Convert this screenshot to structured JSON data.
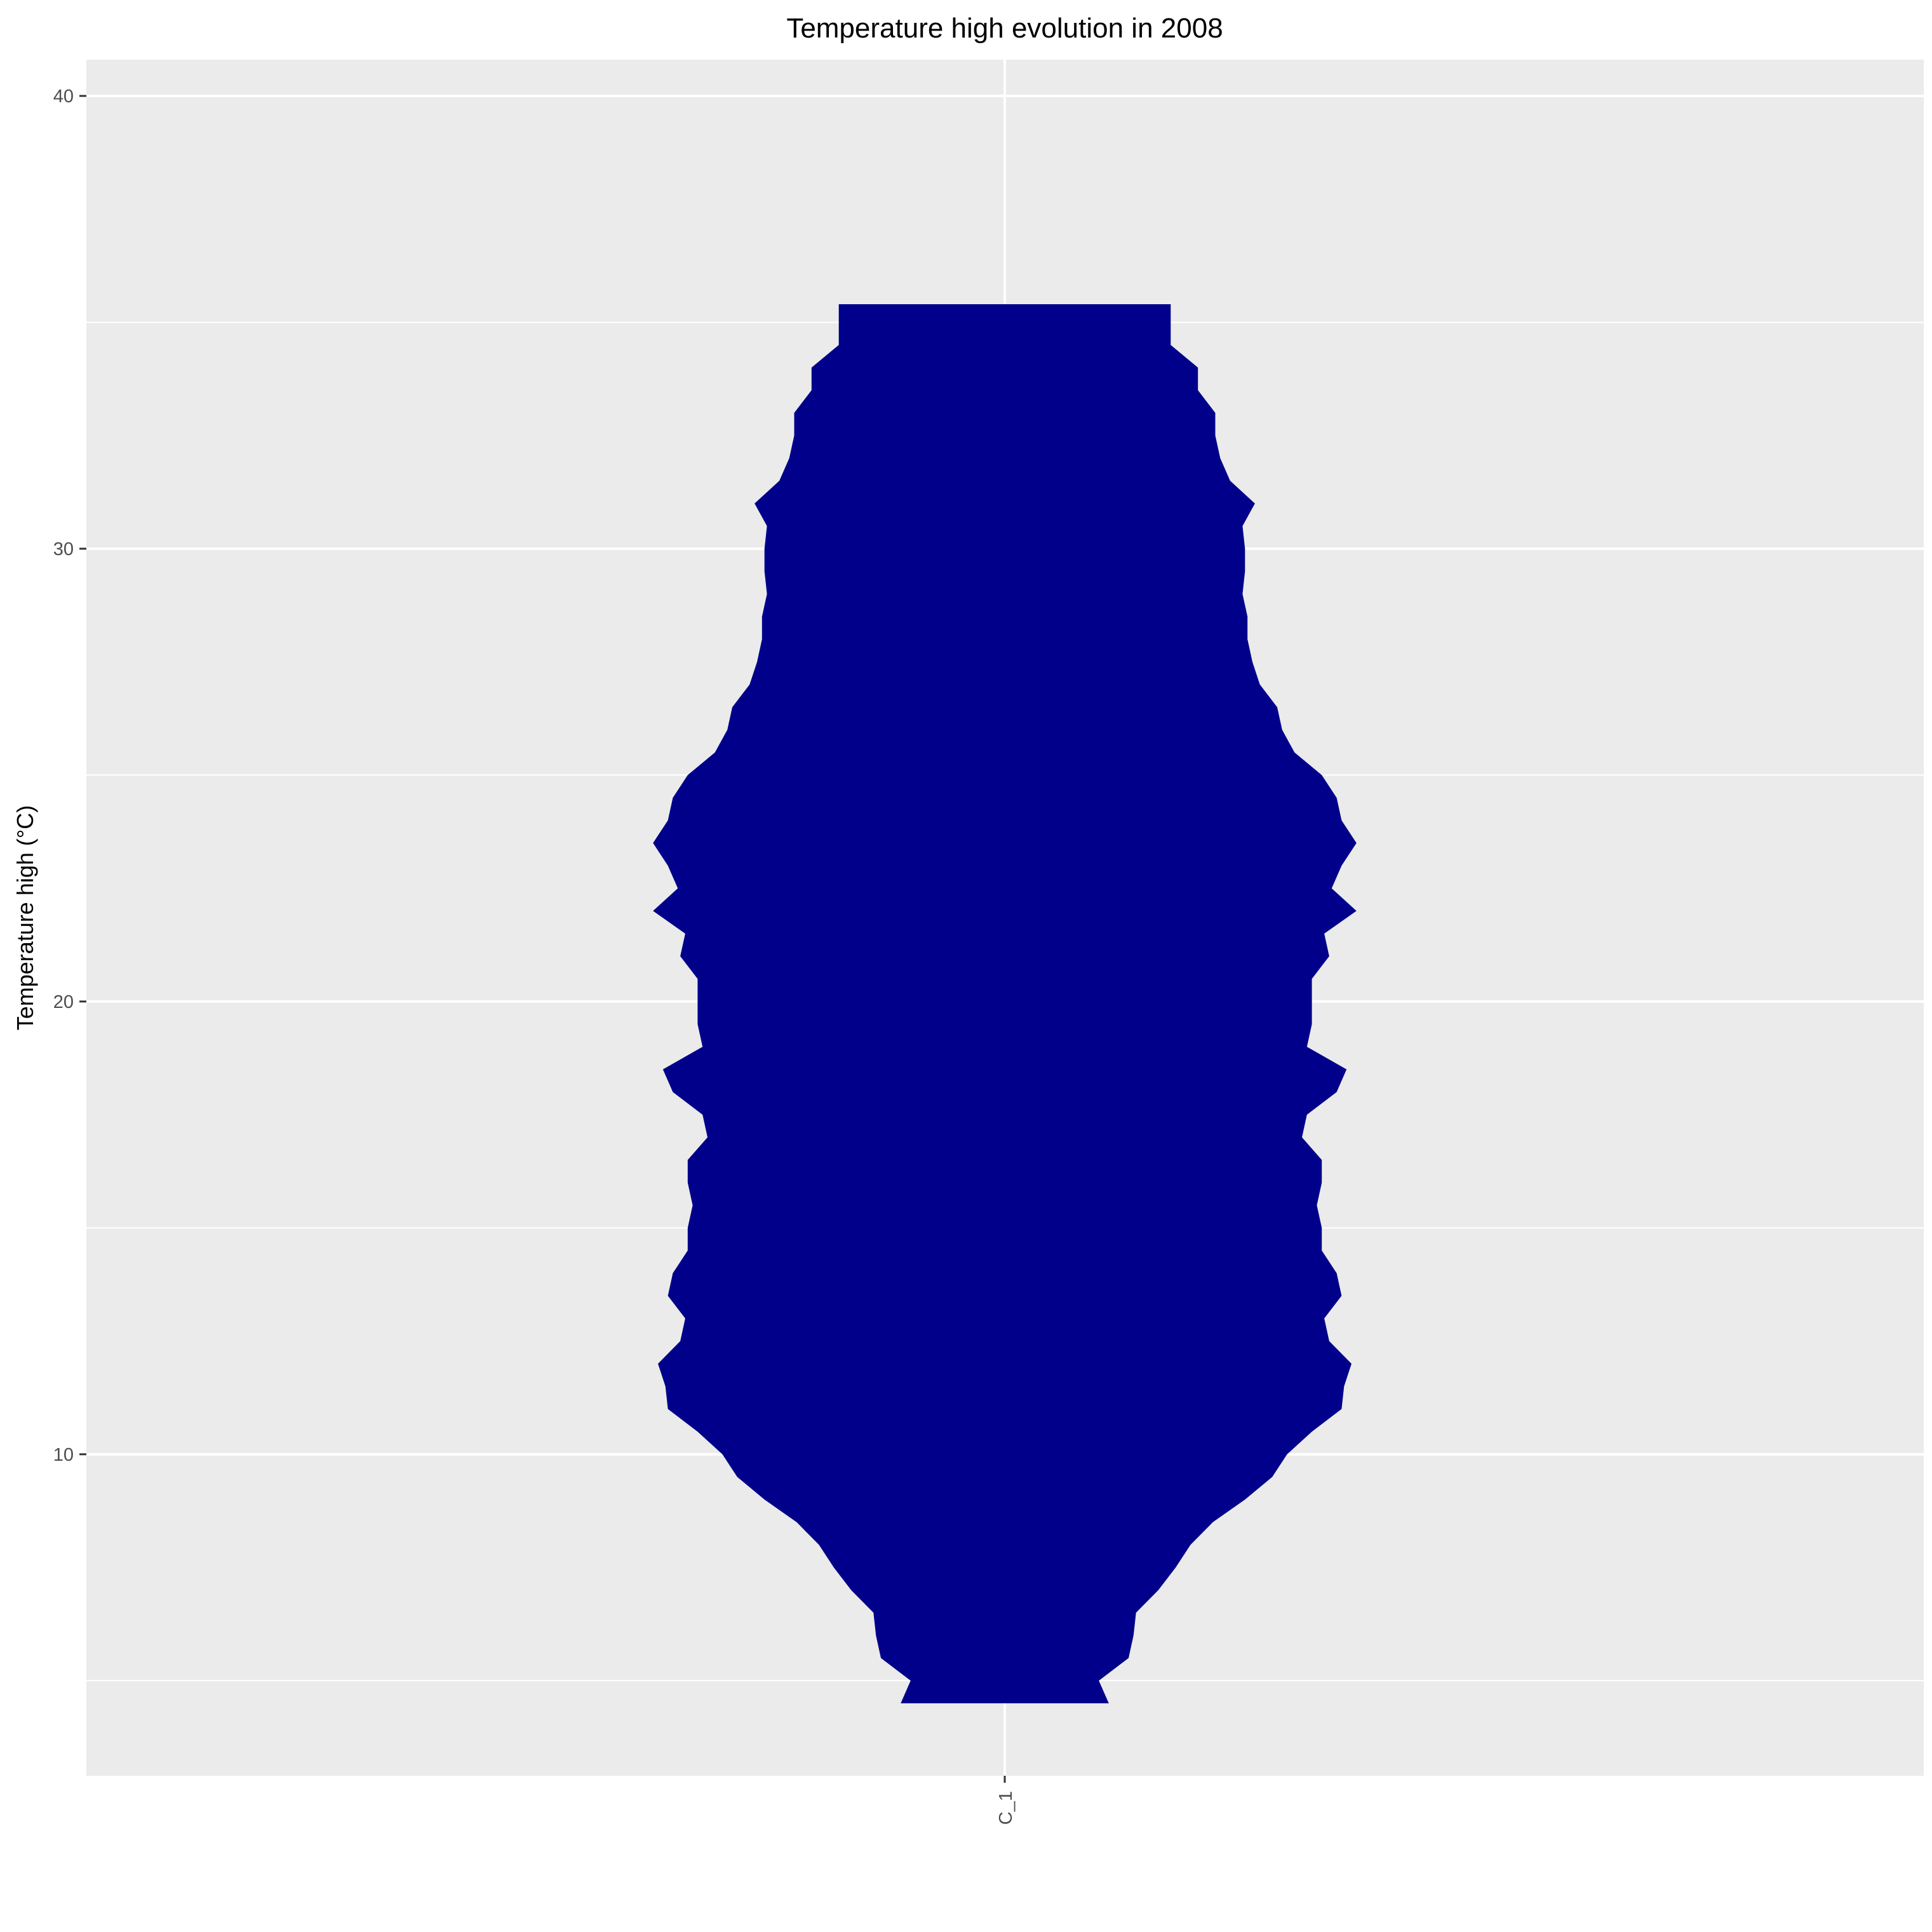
{
  "chart_data": {
    "type": "violin",
    "title": "Temperature high evolution in 2008",
    "xlabel": "",
    "ylabel": "Temperature high (°C)",
    "categories": [
      "C_1"
    ],
    "ylim": [
      2.9,
      40.8
    ],
    "yticks": [
      10,
      20,
      30,
      40
    ],
    "y_minor_ticks": [
      5,
      15,
      25,
      35
    ],
    "grid": true,
    "fill_color": "#00008b",
    "panel_color": "#ebebeb",
    "grid_color": "#ffffff",
    "density_profile": {
      "y": [
        4.5,
        5.0,
        5.5,
        6.0,
        6.5,
        7.0,
        7.5,
        8.0,
        8.5,
        9.0,
        9.5,
        10.0,
        10.5,
        11.0,
        11.5,
        12.0,
        12.5,
        13.0,
        13.5,
        14.0,
        14.5,
        15.0,
        15.5,
        16.0,
        16.5,
        17.0,
        17.5,
        18.0,
        18.5,
        19.0,
        19.5,
        20.0,
        20.5,
        21.0,
        21.5,
        22.0,
        22.5,
        23.0,
        23.5,
        24.0,
        24.5,
        25.0,
        25.5,
        26.0,
        26.5,
        27.0,
        27.5,
        28.0,
        28.5,
        29.0,
        29.5,
        30.0,
        30.5,
        31.0,
        31.5,
        32.0,
        32.5,
        33.0,
        33.5,
        34.0,
        34.5,
        35.0,
        35.4
      ],
      "half_width": [
        0.42,
        0.38,
        0.5,
        0.52,
        0.53,
        0.62,
        0.69,
        0.75,
        0.84,
        0.97,
        1.08,
        1.14,
        1.24,
        1.36,
        1.37,
        1.4,
        1.31,
        1.29,
        1.36,
        1.34,
        1.28,
        1.28,
        1.26,
        1.28,
        1.28,
        1.2,
        1.22,
        1.34,
        1.38,
        1.22,
        1.24,
        1.24,
        1.24,
        1.31,
        1.29,
        1.42,
        1.32,
        1.36,
        1.42,
        1.36,
        1.34,
        1.28,
        1.17,
        1.12,
        1.1,
        1.03,
        1.0,
        0.98,
        0.98,
        0.96,
        0.97,
        0.97,
        0.96,
        1.01,
        0.91,
        0.87,
        0.85,
        0.85,
        0.78,
        0.78,
        0.67,
        0.67,
        0.67
      ]
    }
  }
}
